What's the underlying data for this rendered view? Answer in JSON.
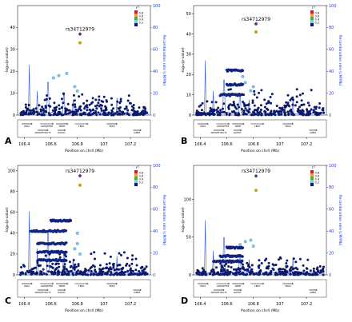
{
  "chart_data": [
    {
      "type": "scatter",
      "panel_label": "A",
      "lead_snp": "rs34712979",
      "lead_snp_position_mb": 106.82,
      "lead_snp_value": 37,
      "second_snp_value": 33,
      "xlabel": "Position on chr4 (Mb)",
      "ylabel": "-log₁₀(p-value)",
      "ylabel_right": "Recombination rate (cM/Mb)",
      "xlim": [
        106.35,
        107.35
      ],
      "x_ticks": [
        106.4,
        106.6,
        106.8,
        107,
        107.2
      ],
      "x_tick_labels": [
        "106.4",
        "106.6",
        "106.8",
        "107",
        "107.2"
      ],
      "ylim": [
        0,
        50
      ],
      "y_ticks": [
        0,
        10,
        20,
        30,
        40
      ],
      "y2lim": [
        0,
        100
      ],
      "y2_ticks": [
        0,
        20,
        40,
        60,
        80,
        100
      ],
      "ld_legend_title": "r²",
      "ld_legend": [
        "0.8",
        "0.6",
        "0.4",
        "0.2"
      ],
      "ld_colors": [
        "#d7191c",
        "#f0a030",
        "#3fb23f",
        "#7fc4e8",
        "#0b1a6b"
      ],
      "recomb_peaks": [
        [
          106.44,
          46
        ],
        [
          106.5,
          22
        ],
        [
          106.58,
          30
        ],
        [
          106.7,
          18
        ],
        [
          106.77,
          14
        ],
        [
          107.1,
          16
        ]
      ],
      "clusters": [],
      "ld_points": [
        [
          106.62,
          17
        ],
        [
          106.66,
          18
        ],
        [
          106.72,
          19
        ],
        [
          106.78,
          13
        ],
        [
          106.8,
          11
        ]
      ],
      "background_max": 6,
      "extras_max": 10
    },
    {
      "type": "scatter",
      "panel_label": "B",
      "lead_snp": "rs34712979",
      "lead_snp_position_mb": 106.82,
      "lead_snp_value": 45,
      "second_snp_value": 41,
      "xlabel": "Position on chr4 (Mb)",
      "ylabel": "-log₁₀(p-value)",
      "ylabel_right": "Recombination rate (cM/Mb)",
      "xlim": [
        106.35,
        107.35
      ],
      "x_ticks": [
        106.4,
        106.6,
        106.8,
        107,
        107.2
      ],
      "x_tick_labels": [
        "106.4",
        "106.6",
        "106.8",
        "107",
        "107.2"
      ],
      "ylim": [
        0,
        54
      ],
      "y_ticks": [
        0,
        10,
        20,
        30,
        40,
        50
      ],
      "y2lim": [
        0,
        100
      ],
      "y2_ticks": [
        0,
        20,
        40,
        60,
        80,
        100
      ],
      "ld_legend_title": "r²",
      "ld_legend": [
        "0.8",
        "0.6",
        "0.4",
        "0.2"
      ],
      "ld_colors": [
        "#d7191c",
        "#f0a030",
        "#3fb23f",
        "#7fc4e8",
        "#0b1a6b"
      ],
      "recomb_peaks": [
        [
          106.44,
          50
        ],
        [
          106.5,
          22
        ],
        [
          106.58,
          32
        ],
        [
          106.7,
          18
        ],
        [
          106.77,
          14
        ],
        [
          107.1,
          16
        ]
      ],
      "clusters": [
        [
          106.6,
          106.72,
          22
        ],
        [
          106.6,
          106.72,
          15
        ],
        [
          106.55,
          106.72,
          10
        ]
      ],
      "ld_points": [
        [
          106.72,
          19
        ],
        [
          106.74,
          16
        ],
        [
          106.8,
          14
        ],
        [
          106.78,
          12
        ]
      ],
      "background_max": 8,
      "extras_max": 14
    },
    {
      "type": "scatter",
      "panel_label": "C",
      "lead_snp": "rs34712979",
      "lead_snp_position_mb": 106.82,
      "lead_snp_value": 95,
      "second_snp_value": 86,
      "xlabel": "Position on chr4 (Mb)",
      "ylabel": "-log₁₀(p-value)",
      "ylabel_right": "Recombination rate (cM/Mb)",
      "xlim": [
        106.35,
        107.35
      ],
      "x_ticks": [
        106.4,
        106.6,
        106.8,
        107,
        107.2
      ],
      "x_tick_labels": [
        "106.4",
        "106.6",
        "106.8",
        "107",
        "107.2"
      ],
      "ylim": [
        0,
        105
      ],
      "y_ticks": [
        0,
        20,
        40,
        60,
        80,
        100
      ],
      "y2lim": [
        0,
        100
      ],
      "y2_ticks": [
        0,
        20,
        40,
        60,
        80,
        100
      ],
      "ld_legend_title": "r²",
      "ld_legend": [
        "0.8",
        "0.6",
        "0.4",
        "0.2"
      ],
      "ld_colors": [
        "#d7191c",
        "#f0a030",
        "#3fb23f",
        "#7fc4e8",
        "#0b1a6b"
      ],
      "recomb_peaks": [
        [
          106.44,
          58
        ],
        [
          106.5,
          24
        ],
        [
          106.58,
          38
        ],
        [
          106.7,
          20
        ],
        [
          106.77,
          15
        ],
        [
          107.1,
          17
        ]
      ],
      "clusters": [
        [
          106.6,
          106.75,
          52
        ],
        [
          106.45,
          106.72,
          42
        ],
        [
          106.5,
          106.72,
          30
        ],
        [
          106.5,
          106.72,
          22
        ],
        [
          106.5,
          106.72,
          14
        ]
      ],
      "ld_points": [
        [
          106.8,
          40
        ],
        [
          106.8,
          30
        ],
        [
          106.78,
          25
        ],
        [
          106.82,
          20
        ]
      ],
      "background_max": 12,
      "extras_max": 22
    },
    {
      "type": "scatter",
      "panel_label": "D",
      "lead_snp": "rs34712979",
      "lead_snp_position_mb": 106.82,
      "lead_snp_value": 131,
      "second_snp_value": 112,
      "xlabel": "Position on chr4 (Mb)",
      "ylabel": "-log₁₀(p-value)",
      "ylabel_right": "Recombination rate (cM/Mb)",
      "xlim": [
        106.35,
        107.35
      ],
      "x_ticks": [
        106.4,
        106.6,
        106.8,
        107,
        107.2
      ],
      "x_tick_labels": [
        "106.4",
        "106.6",
        "106.8",
        "107",
        "107.2"
      ],
      "ylim": [
        0,
        145
      ],
      "y_ticks": [
        0,
        50,
        100
      ],
      "y2lim": [
        0,
        100
      ],
      "y2_ticks": [
        0,
        20,
        40,
        60,
        80,
        100
      ],
      "ld_legend_title": "r²",
      "ld_legend": [
        "0.8",
        "0.6",
        "0.4",
        "0.2"
      ],
      "ld_colors": [
        "#d7191c",
        "#f0a030",
        "#3fb23f",
        "#7fc4e8",
        "#0b1a6b"
      ],
      "recomb_peaks": [
        [
          106.44,
          50
        ],
        [
          106.5,
          22
        ],
        [
          106.58,
          34
        ],
        [
          106.7,
          18
        ],
        [
          106.77,
          14
        ],
        [
          107.1,
          16
        ]
      ],
      "clusters": [
        [
          106.6,
          106.72,
          36
        ],
        [
          106.55,
          106.72,
          25
        ],
        [
          106.5,
          106.72,
          18
        ]
      ],
      "ld_points": [
        [
          106.7,
          40
        ],
        [
          106.74,
          44
        ],
        [
          106.78,
          46
        ],
        [
          106.8,
          38
        ]
      ],
      "background_max": 14,
      "extras_max": 24
    }
  ],
  "genes": [
    "PPA2",
    "ARHGEF38",
    "INTS12",
    "NPNT",
    "TBCK",
    "ARHGEF38-IT1",
    "GSTCD",
    "AIMP1"
  ]
}
